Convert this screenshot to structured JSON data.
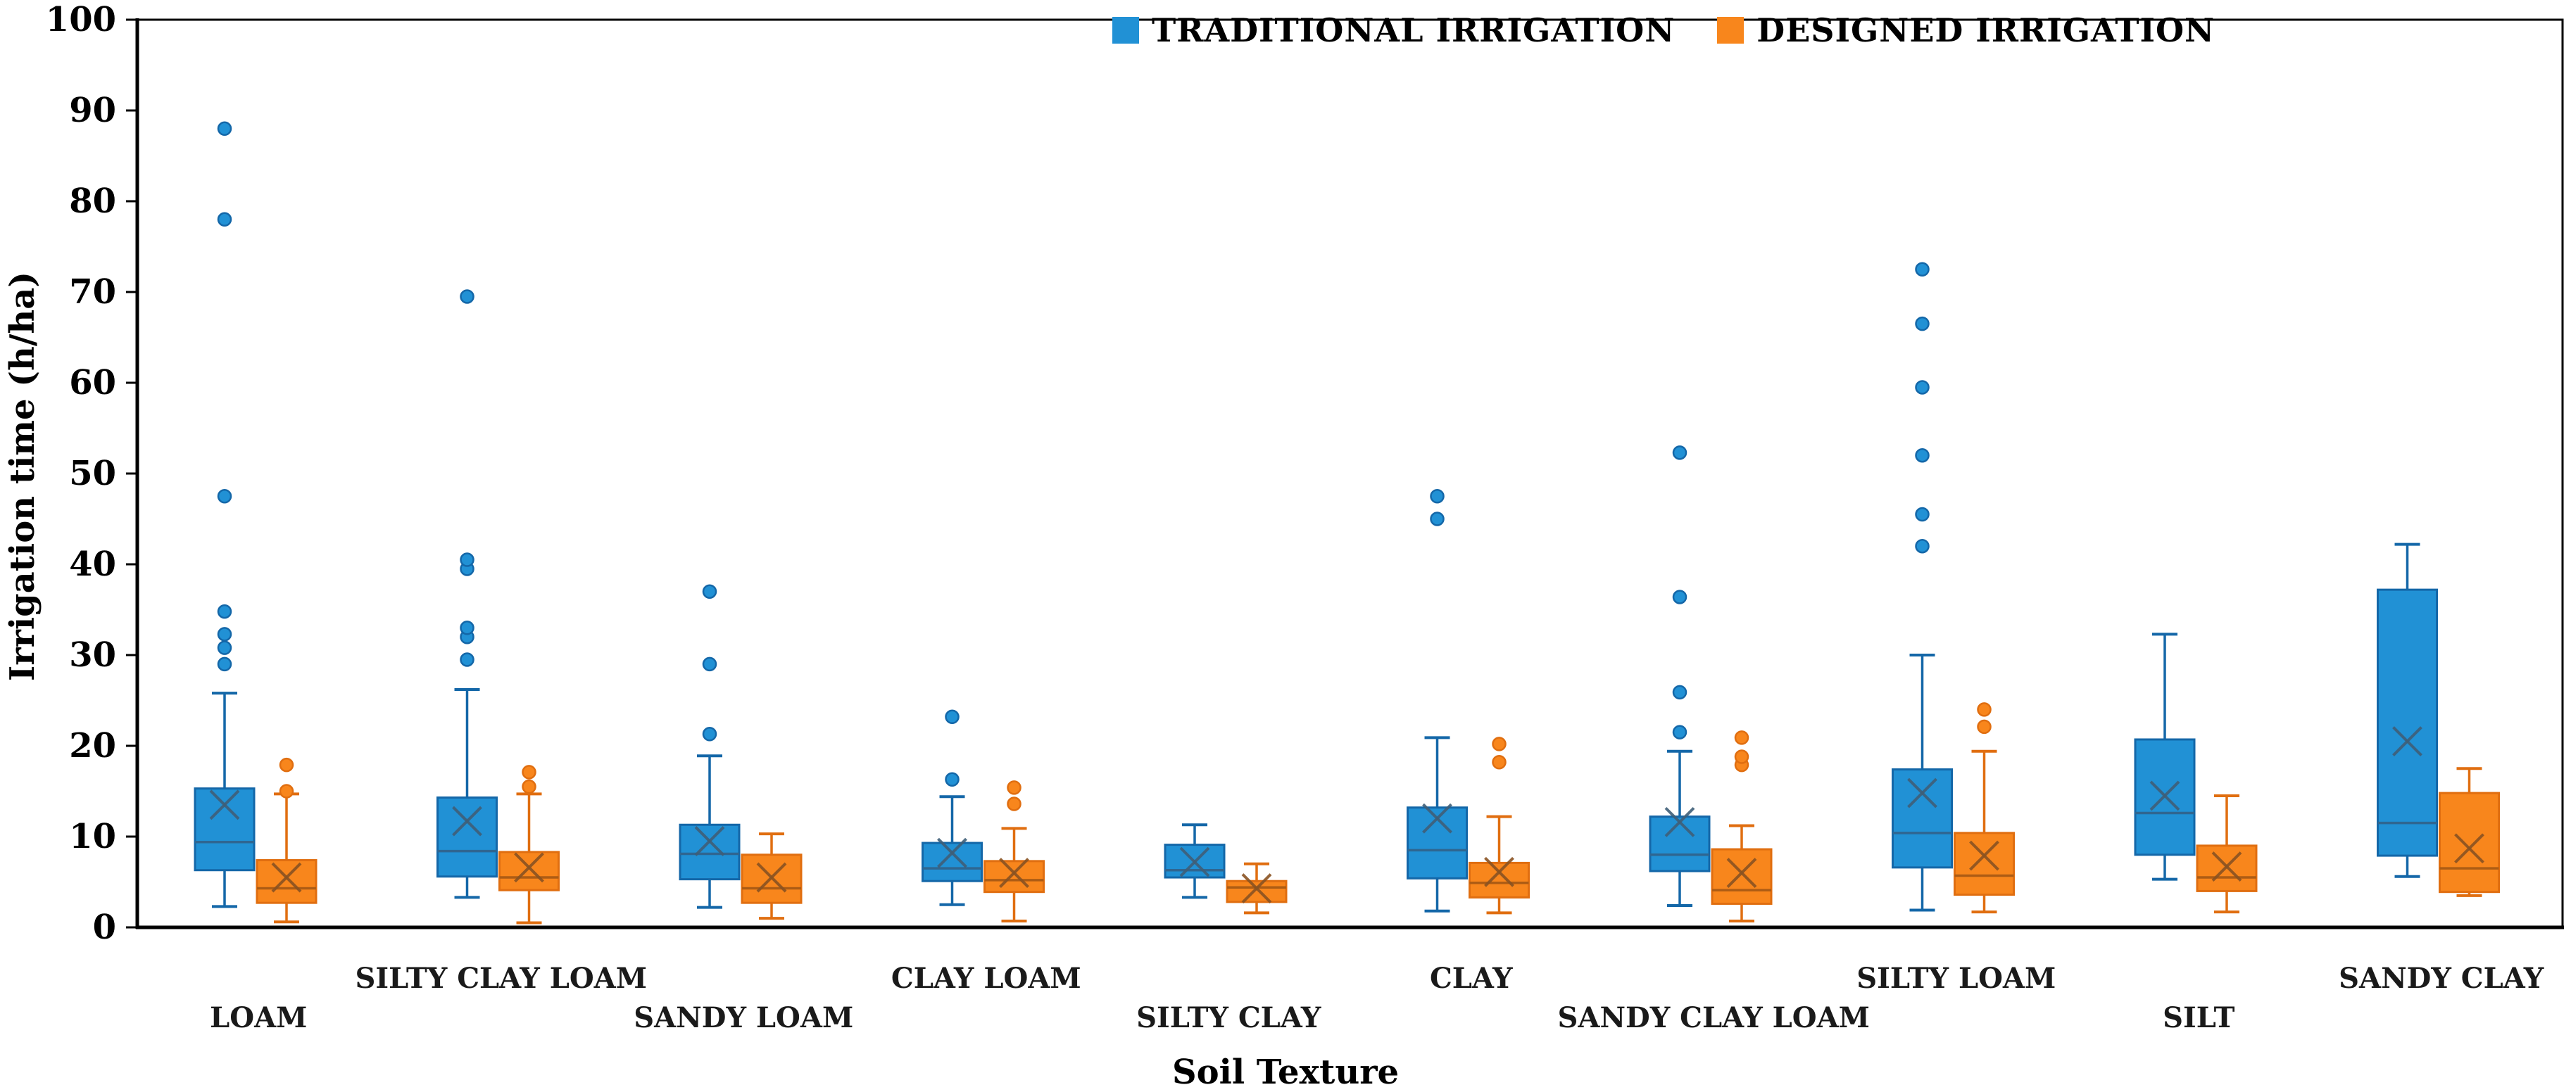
{
  "legend": {
    "items": [
      {
        "label": "TRADITIONAL IRRIGATION",
        "color": "#2191D5"
      },
      {
        "label": "DESIGNED IRRIGATION",
        "color": "#F8861C"
      }
    ]
  },
  "y_axis": {
    "title": "Irrigation time (h/ha)",
    "min": 0,
    "max": 100,
    "tick_step": 10,
    "tick_labels": [
      "0",
      "10",
      "20",
      "30",
      "40",
      "50",
      "60",
      "70",
      "80",
      "90",
      "100"
    ]
  },
  "x_axis": {
    "title": "Soil Texture"
  },
  "chart_data": {
    "type": "boxplot",
    "title": "",
    "xlabel": "Soil Texture",
    "ylabel": "Irrigation time (h/ha)",
    "ylim": [
      0,
      100
    ],
    "grid": false,
    "legend_position": "top-center",
    "categories": [
      "LOAM",
      "SILTY CLAY LOAM",
      "SANDY LOAM",
      "CLAY LOAM",
      "SILTY CLAY",
      "CLAY",
      "SANDY CLAY LOAM",
      "SILTY LOAM",
      "SILT",
      "SANDY CLAY"
    ],
    "series": [
      {
        "name": "TRADITIONAL IRRIGATION",
        "fill": "#2191D5",
        "stroke": "#1467A8",
        "median_color": "#2F6691",
        "mean_color": "#3F5F78",
        "boxes": [
          {
            "whislo": 2.3,
            "q1": 6.3,
            "med": 9.4,
            "q3": 15.3,
            "whishi": 25.8,
            "mean": 13.5,
            "outliers": [
              29.0,
              30.8,
              32.3,
              34.8,
              47.5,
              78.0,
              88.0
            ]
          },
          {
            "whislo": 3.3,
            "q1": 5.6,
            "med": 8.4,
            "q3": 14.3,
            "whishi": 26.2,
            "mean": 11.7,
            "outliers": [
              29.5,
              32.0,
              33.0,
              39.5,
              40.5,
              69.5
            ]
          },
          {
            "whislo": 2.2,
            "q1": 5.3,
            "med": 8.1,
            "q3": 11.3,
            "whishi": 18.9,
            "mean": 9.5,
            "outliers": [
              21.3,
              29.0,
              37.0
            ]
          },
          {
            "whislo": 2.5,
            "q1": 5.1,
            "med": 6.5,
            "q3": 9.3,
            "whishi": 14.4,
            "mean": 8.2,
            "outliers": [
              16.3,
              23.2
            ]
          },
          {
            "whislo": 3.3,
            "q1": 5.5,
            "med": 6.3,
            "q3": 9.1,
            "whishi": 11.3,
            "mean": 7.2,
            "outliers": []
          },
          {
            "whislo": 1.8,
            "q1": 5.4,
            "med": 8.5,
            "q3": 13.2,
            "whishi": 20.9,
            "mean": 12.0,
            "outliers": [
              45.0,
              47.5
            ]
          },
          {
            "whislo": 2.4,
            "q1": 6.2,
            "med": 8.0,
            "q3": 12.2,
            "whishi": 19.4,
            "mean": 11.6,
            "outliers": [
              21.5,
              25.9,
              36.4,
              52.3
            ]
          },
          {
            "whislo": 1.9,
            "q1": 6.6,
            "med": 10.4,
            "q3": 17.4,
            "whishi": 30.0,
            "mean": 14.8,
            "outliers": [
              42.0,
              45.5,
              52.0,
              59.5,
              66.5,
              72.5
            ]
          },
          {
            "whislo": 5.3,
            "q1": 8.0,
            "med": 12.6,
            "q3": 20.7,
            "whishi": 32.3,
            "mean": 14.5,
            "outliers": []
          },
          {
            "whislo": 5.6,
            "q1": 7.9,
            "med": 11.5,
            "q3": 37.2,
            "whishi": 42.2,
            "mean": 20.5,
            "outliers": []
          }
        ]
      },
      {
        "name": "DESIGNED IRRIGATION",
        "fill": "#F8861C",
        "stroke": "#E06E10",
        "median_color": "#AD5C14",
        "mean_color": "#8A5322",
        "boxes": [
          {
            "whislo": 0.6,
            "q1": 2.7,
            "med": 4.3,
            "q3": 7.4,
            "whishi": 14.7,
            "mean": 5.5,
            "outliers": [
              15.0,
              17.9
            ]
          },
          {
            "whislo": 0.5,
            "q1": 4.1,
            "med": 5.5,
            "q3": 8.3,
            "whishi": 14.7,
            "mean": 6.6,
            "outliers": [
              15.5,
              17.1
            ]
          },
          {
            "whislo": 1.0,
            "q1": 2.7,
            "med": 4.3,
            "q3": 8.0,
            "whishi": 10.3,
            "mean": 5.5,
            "outliers": []
          },
          {
            "whislo": 0.7,
            "q1": 3.9,
            "med": 5.2,
            "q3": 7.3,
            "whishi": 10.9,
            "mean": 6.0,
            "outliers": [
              13.6,
              15.4
            ]
          },
          {
            "whislo": 1.6,
            "q1": 2.8,
            "med": 4.4,
            "q3": 5.1,
            "whishi": 7.0,
            "mean": 4.3,
            "outliers": []
          },
          {
            "whislo": 1.6,
            "q1": 3.3,
            "med": 4.9,
            "q3": 7.1,
            "whishi": 12.2,
            "mean": 6.1,
            "outliers": [
              18.2,
              20.2
            ]
          },
          {
            "whislo": 0.7,
            "q1": 2.6,
            "med": 4.1,
            "q3": 8.6,
            "whishi": 11.2,
            "mean": 6.0,
            "outliers": [
              17.9,
              18.8,
              20.9
            ]
          },
          {
            "whislo": 1.7,
            "q1": 3.6,
            "med": 5.7,
            "q3": 10.4,
            "whishi": 19.4,
            "mean": 7.9,
            "outliers": [
              22.1,
              24.0
            ]
          },
          {
            "whislo": 1.7,
            "q1": 4.0,
            "med": 5.5,
            "q3": 9.0,
            "whishi": 14.5,
            "mean": 6.7,
            "outliers": []
          },
          {
            "whislo": 3.5,
            "q1": 3.9,
            "med": 6.5,
            "q3": 14.8,
            "whishi": 17.5,
            "mean": 8.7,
            "outliers": []
          }
        ]
      }
    ]
  }
}
